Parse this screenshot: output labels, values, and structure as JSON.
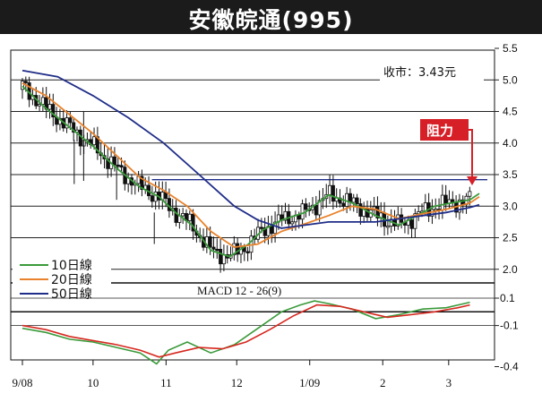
{
  "header": {
    "title": "安徽皖通(995)"
  },
  "chart_data": [
    {
      "type": "candlestick",
      "close_label": "收市：3.43元",
      "resistance_label": "阻力",
      "resistance_level": 3.42,
      "ylim": [
        1.5,
        5.5
      ],
      "y_ticks": [
        "5.5",
        "5.0",
        "4.5",
        "4.0",
        "3.5",
        "3.0",
        "2.5",
        "2.0"
      ],
      "y_tick_values": [
        5.5,
        5.0,
        4.5,
        4.0,
        3.5,
        3.0,
        2.5,
        2.0
      ],
      "x_tick_labels": [
        "9/08",
        "10",
        "11",
        "12",
        "1/09",
        "2",
        "3"
      ],
      "x_tick_days": [
        0,
        30,
        61,
        91,
        122,
        153,
        181
      ],
      "x_range_days": [
        0,
        194
      ],
      "legend": {
        "position": "bottom-left",
        "entries": [
          "10日線",
          "20日線",
          "50日線"
        ]
      },
      "series": [
        {
          "name": "10日線",
          "color": "#3a9a3a",
          "x": [
            0,
            10,
            20,
            30,
            40,
            50,
            58,
            65,
            72,
            80,
            88,
            96,
            102,
            110,
            120,
            130,
            140,
            150,
            160,
            170,
            175,
            182,
            190,
            194
          ],
          "values": [
            4.9,
            4.55,
            4.25,
            3.95,
            3.6,
            3.3,
            3.15,
            2.9,
            2.7,
            2.3,
            2.2,
            2.4,
            2.62,
            2.78,
            2.9,
            3.18,
            3.05,
            2.85,
            2.7,
            2.9,
            3.0,
            3.05,
            3.1,
            3.2
          ]
        },
        {
          "name": "20日線",
          "color": "#e8822c",
          "x": [
            0,
            10,
            20,
            30,
            40,
            50,
            60,
            70,
            80,
            90,
            100,
            110,
            120,
            130,
            140,
            150,
            160,
            170,
            180,
            190,
            194
          ],
          "values": [
            4.95,
            4.75,
            4.45,
            4.15,
            3.8,
            3.45,
            3.25,
            3.0,
            2.6,
            2.35,
            2.4,
            2.6,
            2.72,
            2.85,
            3.0,
            2.95,
            2.8,
            2.88,
            2.95,
            3.05,
            3.15
          ]
        },
        {
          "name": "50日線",
          "color": "#1f2d88",
          "x": [
            0,
            15,
            30,
            45,
            60,
            75,
            90,
            100,
            110,
            120,
            130,
            140,
            150,
            160,
            170,
            180,
            190,
            194
          ],
          "values": [
            5.15,
            5.05,
            4.75,
            4.4,
            4.0,
            3.5,
            3.0,
            2.78,
            2.65,
            2.7,
            2.75,
            2.75,
            2.75,
            2.8,
            2.85,
            2.9,
            2.98,
            3.02
          ]
        }
      ]
    },
    {
      "type": "line",
      "title": "MACD 12 - 26(9)",
      "ylim": [
        -0.45,
        0.15
      ],
      "y_ticks": [
        "0.1",
        "-0.1",
        "-0.4"
      ],
      "y_tick_values": [
        0.1,
        -0.1,
        -0.4
      ],
      "series": [
        {
          "color": "#3a9a3a",
          "x": [
            0,
            10,
            20,
            30,
            40,
            50,
            57,
            62,
            70,
            80,
            90,
            100,
            110,
            118,
            124,
            130,
            140,
            150,
            160,
            170,
            180,
            190
          ],
          "values": [
            -0.12,
            -0.15,
            -0.2,
            -0.22,
            -0.26,
            -0.3,
            -0.38,
            -0.28,
            -0.22,
            -0.3,
            -0.24,
            -0.12,
            0.0,
            0.05,
            0.08,
            0.06,
            0.02,
            -0.05,
            -0.02,
            0.02,
            0.03,
            0.07
          ]
        },
        {
          "color": "#d6281f",
          "x": [
            0,
            10,
            20,
            30,
            40,
            50,
            58,
            65,
            75,
            85,
            95,
            105,
            115,
            125,
            135,
            145,
            155,
            165,
            175,
            185,
            190
          ],
          "values": [
            -0.1,
            -0.13,
            -0.18,
            -0.21,
            -0.24,
            -0.28,
            -0.33,
            -0.3,
            -0.26,
            -0.27,
            -0.22,
            -0.13,
            -0.03,
            0.05,
            0.04,
            0.0,
            -0.04,
            -0.02,
            0.0,
            0.03,
            0.05
          ]
        }
      ]
    }
  ]
}
